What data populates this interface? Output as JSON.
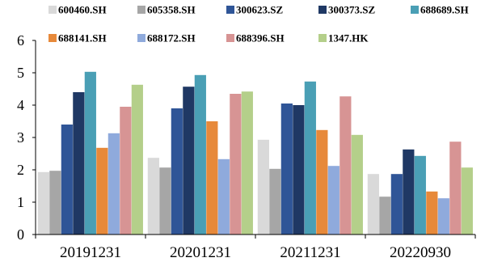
{
  "chart_data": {
    "type": "bar",
    "title": "",
    "xlabel": "",
    "ylabel": "",
    "ylim": [
      0,
      6
    ],
    "yticks": [
      0,
      1,
      2,
      3,
      4,
      5,
      6
    ],
    "grid": false,
    "legend_position": "top",
    "categories": [
      "20191231",
      "20201231",
      "20211231",
      "20220930"
    ],
    "series": [
      {
        "name": "600460.SH",
        "color": "#d9d9d9",
        "values": [
          1.93,
          2.37,
          2.93,
          1.87
        ]
      },
      {
        "name": "605358.SH",
        "color": "#a6a6a6",
        "values": [
          1.97,
          2.07,
          2.03,
          1.17
        ]
      },
      {
        "name": "300623.SZ",
        "color": "#2f5597",
        "values": [
          3.4,
          3.9,
          4.05,
          1.87
        ]
      },
      {
        "name": "300373.SZ",
        "color": "#1f3864",
        "values": [
          4.4,
          4.57,
          4.0,
          2.63
        ]
      },
      {
        "name": "688689.SH",
        "color": "#4a9fb5",
        "values": [
          5.03,
          4.93,
          4.73,
          2.43
        ]
      },
      {
        "name": "688141.SH",
        "color": "#e7893a",
        "values": [
          2.68,
          3.5,
          3.23,
          1.33
        ]
      },
      {
        "name": "688172.SH",
        "color": "#8faadc",
        "values": [
          3.13,
          2.33,
          2.12,
          1.12
        ]
      },
      {
        "name": "688396.SH",
        "color": "#d79494",
        "values": [
          3.95,
          4.35,
          4.27,
          2.87
        ]
      },
      {
        "name": "1347.HK",
        "color": "#b4cf8a",
        "values": [
          4.63,
          4.42,
          3.08,
          2.07
        ]
      }
    ]
  }
}
